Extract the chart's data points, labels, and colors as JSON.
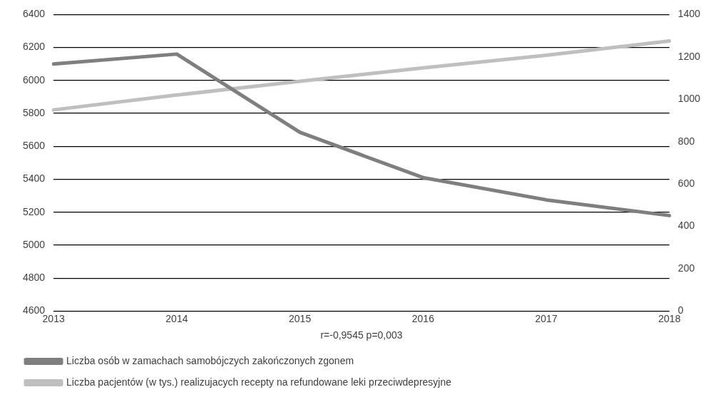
{
  "chart_data": {
    "type": "line",
    "xlabel": "r=-0,9545 p=0,003",
    "categories": [
      "2013",
      "2014",
      "2015",
      "2016",
      "2017",
      "2018"
    ],
    "series": [
      {
        "name": "Liczba osób w zamachach samobójczych zakończonych zgonem",
        "color": "#7f7f7f",
        "values": [
          6100,
          6160,
          5685,
          5410,
          5275,
          5180
        ]
      },
      {
        "name": "Liczba pacjentów (w tys.) realizujacych recepty na refundowane leki przeciwdepresyjne",
        "color": "#bfbfbf",
        "axis": "y2",
        "values": [
          950,
          1020,
          1085,
          1148,
          1208,
          1275
        ]
      }
    ],
    "ylim": [
      4600,
      6400
    ],
    "yticks": [
      4600,
      4800,
      5000,
      5200,
      5400,
      5600,
      5800,
      6000,
      6200,
      6400
    ],
    "y2lim": [
      0,
      1400
    ],
    "y2ticks": [
      0,
      200,
      400,
      600,
      800,
      1000,
      1200,
      1400
    ],
    "grid": "y",
    "legend": "bottom",
    "marker": "none",
    "line_style": "solid"
  }
}
